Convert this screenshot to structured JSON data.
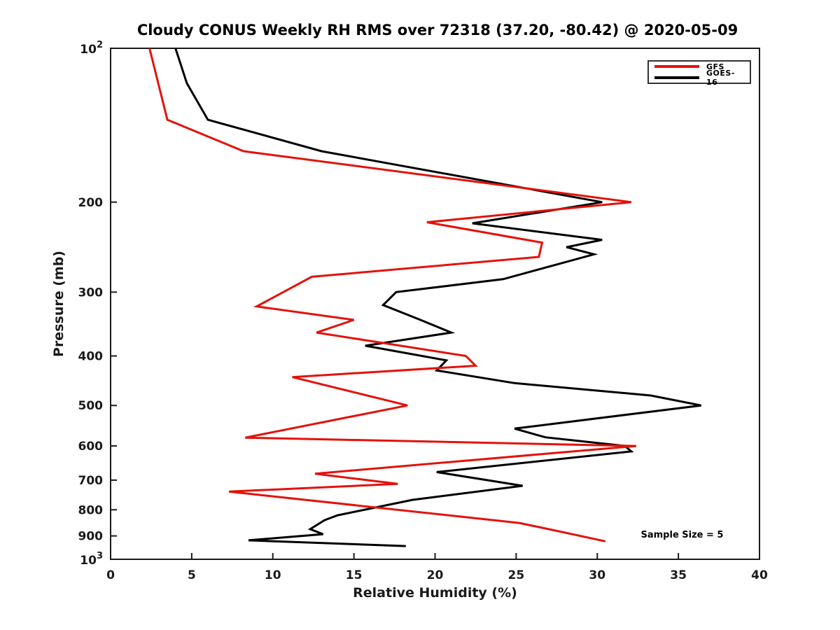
{
  "figure": {
    "title": "Cloudy CONUS Weekly RH RMS over 72318 (37.20, -80.42) @ 2020-05-09",
    "background_color": "#ffffff",
    "axis_color": "#1a1a1a"
  },
  "axes": {
    "x": {
      "label": "Relative Humidity (%)",
      "min": 0,
      "max": 40,
      "ticks": [
        0,
        5,
        10,
        15,
        20,
        25,
        30,
        35,
        40
      ]
    },
    "y": {
      "label": "Pressure (mb)",
      "scale": "log",
      "min": 100,
      "max": 1000,
      "top_tick_label": "10^2",
      "bottom_tick_label": "10^3",
      "ticks": [
        200,
        300,
        400,
        500,
        600,
        700,
        800,
        900
      ],
      "direction": "increasing-downward"
    }
  },
  "legend": {
    "position": "top-right",
    "items": [
      {
        "label": "GFS",
        "color": "#e3120b"
      },
      {
        "label": "GOES-16",
        "color": "#000000"
      }
    ]
  },
  "annotation": {
    "sample_size": "Sample Size = 5"
  },
  "chart_data": {
    "type": "line",
    "title": "Cloudy CONUS Weekly RH RMS over 72318 (37.20, -80.42) @ 2020-05-09",
    "xlabel": "Relative Humidity (%)",
    "ylabel": "Pressure (mb)",
    "xlim": [
      0,
      40
    ],
    "ylim": [
      100,
      1000
    ],
    "y_scale": "log",
    "y_inverted": true,
    "grid": false,
    "legend_position": "top-right",
    "series": [
      {
        "name": "GFS",
        "color": "#e3120b",
        "points_pressure_mb": [
          100,
          138,
          159,
          200,
          219,
          240,
          256,
          280,
          320,
          340,
          360,
          400,
          418,
          440,
          500,
          578,
          600,
          680,
          712,
          737,
          849,
          877,
          922
        ],
        "points_rh_percent": [
          2.4,
          3.5,
          8.2,
          32.1,
          19.5,
          26.6,
          26.4,
          12.4,
          9.0,
          15.0,
          12.7,
          21.9,
          22.5,
          11.2,
          18.3,
          8.3,
          32.4,
          12.6,
          17.7,
          7.3,
          25.2,
          27.3,
          30.5
        ]
      },
      {
        "name": "GOES-16",
        "color": "#000000",
        "points_pressure_mb": [
          100,
          117,
          138,
          159,
          200,
          220,
          237,
          245,
          253,
          283,
          300,
          318,
          338,
          360,
          382,
          408,
          427,
          452,
          478,
          500,
          555,
          577,
          600,
          615,
          675,
          718,
          765,
          820,
          838,
          873,
          893,
          918,
          942
        ],
        "points_rh_percent": [
          4.0,
          4.7,
          6.0,
          13.0,
          30.3,
          22.3,
          30.3,
          28.1,
          29.8,
          24.2,
          17.6,
          16.8,
          18.9,
          21.0,
          15.7,
          20.7,
          20.1,
          24.9,
          33.3,
          36.4,
          24.9,
          26.8,
          31.7,
          32.1,
          20.1,
          25.4,
          18.6,
          14.0,
          13.2,
          12.3,
          13.1,
          8.5,
          18.2
        ]
      }
    ],
    "annotations": [
      "Sample Size = 5"
    ]
  }
}
